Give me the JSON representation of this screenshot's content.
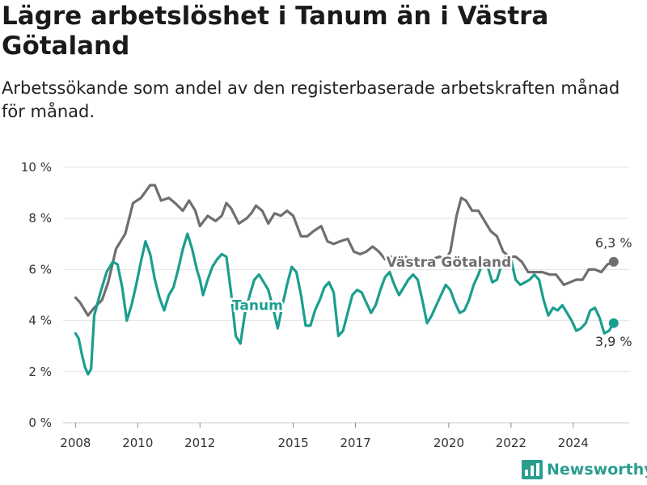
{
  "header": {
    "title": "Lägre arbetslöshet i Tanum än i Västra Götaland",
    "subtitle": "Arbetssökande som andel av den registerbaserade arbetskraften månad för månad."
  },
  "logo": {
    "text": "Newsworthy",
    "icon": "bar-chart-logo-icon",
    "color": "#2a9d8f"
  },
  "chart_data": {
    "type": "line",
    "ylim": [
      0,
      10
    ],
    "xlim": [
      2007.6,
      2025.8
    ],
    "y_ticks": [
      0,
      2,
      4,
      6,
      8,
      10
    ],
    "y_tick_labels": [
      "0 %",
      "2 %",
      "4 %",
      "6 %",
      "8 %",
      "10 %"
    ],
    "x_ticks": [
      2008,
      2010,
      2012,
      2015,
      2017,
      2020,
      2022,
      2024
    ],
    "x_tick_labels": [
      "2008",
      "2010",
      "2012",
      "2015",
      "2017",
      "2020",
      "2022",
      "2024"
    ],
    "grid": "horizontal",
    "legend": "none",
    "series": [
      {
        "name": "Västra Götaland",
        "color": "#6e6e73",
        "end_label": "6,3 %",
        "points": [
          [
            2008.0,
            4.9
          ],
          [
            2008.15,
            4.7
          ],
          [
            2008.4,
            4.2
          ],
          [
            2008.6,
            4.5
          ],
          [
            2008.85,
            4.8
          ],
          [
            2009.05,
            5.5
          ],
          [
            2009.3,
            6.8
          ],
          [
            2009.6,
            7.4
          ],
          [
            2009.85,
            8.6
          ],
          [
            2010.1,
            8.8
          ],
          [
            2010.4,
            9.3
          ],
          [
            2010.55,
            9.3
          ],
          [
            2010.75,
            8.7
          ],
          [
            2011.0,
            8.8
          ],
          [
            2011.2,
            8.6
          ],
          [
            2011.45,
            8.3
          ],
          [
            2011.65,
            8.7
          ],
          [
            2011.85,
            8.3
          ],
          [
            2012.0,
            7.7
          ],
          [
            2012.25,
            8.1
          ],
          [
            2012.5,
            7.9
          ],
          [
            2012.7,
            8.1
          ],
          [
            2012.85,
            8.6
          ],
          [
            2013.0,
            8.4
          ],
          [
            2013.25,
            7.8
          ],
          [
            2013.5,
            8.0
          ],
          [
            2013.65,
            8.2
          ],
          [
            2013.8,
            8.5
          ],
          [
            2014.0,
            8.3
          ],
          [
            2014.2,
            7.8
          ],
          [
            2014.4,
            8.2
          ],
          [
            2014.6,
            8.1
          ],
          [
            2014.8,
            8.3
          ],
          [
            2015.0,
            8.1
          ],
          [
            2015.25,
            7.3
          ],
          [
            2015.45,
            7.3
          ],
          [
            2015.65,
            7.5
          ],
          [
            2015.9,
            7.7
          ],
          [
            2016.1,
            7.1
          ],
          [
            2016.3,
            7.0
          ],
          [
            2016.5,
            7.1
          ],
          [
            2016.75,
            7.2
          ],
          [
            2016.95,
            6.7
          ],
          [
            2017.15,
            6.6
          ],
          [
            2017.35,
            6.7
          ],
          [
            2017.55,
            6.9
          ],
          [
            2017.75,
            6.7
          ],
          [
            2017.95,
            6.4
          ],
          [
            2018.15,
            6.5
          ],
          [
            2018.4,
            6.3
          ],
          [
            2018.6,
            6.5
          ],
          [
            2018.8,
            6.3
          ],
          [
            2019.0,
            6.3
          ],
          [
            2019.2,
            6.2
          ],
          [
            2019.45,
            6.4
          ],
          [
            2019.7,
            6.5
          ],
          [
            2019.9,
            6.4
          ],
          [
            2020.05,
            6.7
          ],
          [
            2020.25,
            8.1
          ],
          [
            2020.4,
            8.8
          ],
          [
            2020.55,
            8.7
          ],
          [
            2020.75,
            8.3
          ],
          [
            2020.95,
            8.3
          ],
          [
            2021.15,
            7.9
          ],
          [
            2021.35,
            7.5
          ],
          [
            2021.55,
            7.3
          ],
          [
            2021.75,
            6.7
          ],
          [
            2021.95,
            6.5
          ],
          [
            2022.15,
            6.5
          ],
          [
            2022.35,
            6.3
          ],
          [
            2022.55,
            5.9
          ],
          [
            2022.8,
            5.9
          ],
          [
            2023.0,
            5.9
          ],
          [
            2023.25,
            5.8
          ],
          [
            2023.45,
            5.8
          ],
          [
            2023.7,
            5.4
          ],
          [
            2023.9,
            5.5
          ],
          [
            2024.1,
            5.6
          ],
          [
            2024.3,
            5.6
          ],
          [
            2024.5,
            6.0
          ],
          [
            2024.7,
            6.0
          ],
          [
            2024.9,
            5.9
          ],
          [
            2025.1,
            6.2
          ],
          [
            2025.3,
            6.3
          ]
        ]
      },
      {
        "name": "Tanum",
        "color": "#1a9e8f",
        "end_label": "3,9 %",
        "points": [
          [
            2008.0,
            3.5
          ],
          [
            2008.1,
            3.3
          ],
          [
            2008.2,
            2.7
          ],
          [
            2008.3,
            2.2
          ],
          [
            2008.4,
            1.9
          ],
          [
            2008.5,
            2.1
          ],
          [
            2008.6,
            4.2
          ],
          [
            2008.8,
            5.1
          ],
          [
            2009.0,
            5.9
          ],
          [
            2009.2,
            6.3
          ],
          [
            2009.35,
            6.2
          ],
          [
            2009.5,
            5.3
          ],
          [
            2009.65,
            4.0
          ],
          [
            2009.8,
            4.6
          ],
          [
            2009.95,
            5.4
          ],
          [
            2010.1,
            6.3
          ],
          [
            2010.25,
            7.1
          ],
          [
            2010.4,
            6.6
          ],
          [
            2010.55,
            5.6
          ],
          [
            2010.7,
            4.9
          ],
          [
            2010.85,
            4.4
          ],
          [
            2011.0,
            5.0
          ],
          [
            2011.15,
            5.3
          ],
          [
            2011.3,
            6.0
          ],
          [
            2011.45,
            6.8
          ],
          [
            2011.6,
            7.4
          ],
          [
            2011.75,
            6.8
          ],
          [
            2011.9,
            6.0
          ],
          [
            2012.0,
            5.6
          ],
          [
            2012.1,
            5.0
          ],
          [
            2012.25,
            5.6
          ],
          [
            2012.4,
            6.1
          ],
          [
            2012.55,
            6.4
          ],
          [
            2012.7,
            6.6
          ],
          [
            2012.85,
            6.5
          ],
          [
            2013.0,
            5.1
          ],
          [
            2013.15,
            3.4
          ],
          [
            2013.3,
            3.1
          ],
          [
            2013.45,
            4.3
          ],
          [
            2013.6,
            5.0
          ],
          [
            2013.75,
            5.6
          ],
          [
            2013.9,
            5.8
          ],
          [
            2014.05,
            5.5
          ],
          [
            2014.2,
            5.2
          ],
          [
            2014.35,
            4.5
          ],
          [
            2014.5,
            3.7
          ],
          [
            2014.65,
            4.6
          ],
          [
            2014.8,
            5.4
          ],
          [
            2014.95,
            6.1
          ],
          [
            2015.1,
            5.9
          ],
          [
            2015.25,
            5.0
          ],
          [
            2015.4,
            3.8
          ],
          [
            2015.55,
            3.8
          ],
          [
            2015.7,
            4.4
          ],
          [
            2015.85,
            4.8
          ],
          [
            2016.0,
            5.3
          ],
          [
            2016.15,
            5.5
          ],
          [
            2016.3,
            5.1
          ],
          [
            2016.45,
            3.4
          ],
          [
            2016.6,
            3.6
          ],
          [
            2016.75,
            4.3
          ],
          [
            2016.9,
            5.0
          ],
          [
            2017.05,
            5.2
          ],
          [
            2017.2,
            5.1
          ],
          [
            2017.35,
            4.7
          ],
          [
            2017.5,
            4.3
          ],
          [
            2017.65,
            4.6
          ],
          [
            2017.8,
            5.2
          ],
          [
            2017.95,
            5.7
          ],
          [
            2018.1,
            5.9
          ],
          [
            2018.25,
            5.4
          ],
          [
            2018.4,
            5.0
          ],
          [
            2018.55,
            5.3
          ],
          [
            2018.7,
            5.6
          ],
          [
            2018.85,
            5.8
          ],
          [
            2019.0,
            5.6
          ],
          [
            2019.15,
            4.8
          ],
          [
            2019.3,
            3.9
          ],
          [
            2019.45,
            4.2
          ],
          [
            2019.6,
            4.6
          ],
          [
            2019.75,
            5.0
          ],
          [
            2019.9,
            5.4
          ],
          [
            2020.05,
            5.2
          ],
          [
            2020.2,
            4.7
          ],
          [
            2020.35,
            4.3
          ],
          [
            2020.5,
            4.4
          ],
          [
            2020.65,
            4.8
          ],
          [
            2020.8,
            5.4
          ],
          [
            2020.95,
            5.8
          ],
          [
            2021.1,
            6.3
          ],
          [
            2021.25,
            6.1
          ],
          [
            2021.4,
            5.5
          ],
          [
            2021.55,
            5.6
          ],
          [
            2021.7,
            6.2
          ],
          [
            2021.85,
            6.5
          ],
          [
            2022.0,
            6.4
          ],
          [
            2022.15,
            5.6
          ],
          [
            2022.3,
            5.4
          ],
          [
            2022.45,
            5.5
          ],
          [
            2022.6,
            5.6
          ],
          [
            2022.75,
            5.8
          ],
          [
            2022.9,
            5.6
          ],
          [
            2023.05,
            4.8
          ],
          [
            2023.2,
            4.2
          ],
          [
            2023.35,
            4.5
          ],
          [
            2023.5,
            4.4
          ],
          [
            2023.65,
            4.6
          ],
          [
            2023.8,
            4.3
          ],
          [
            2023.95,
            4.0
          ],
          [
            2024.1,
            3.6
          ],
          [
            2024.25,
            3.7
          ],
          [
            2024.4,
            3.9
          ],
          [
            2024.55,
            4.4
          ],
          [
            2024.7,
            4.5
          ],
          [
            2024.85,
            4.1
          ],
          [
            2025.0,
            3.5
          ],
          [
            2025.15,
            3.6
          ],
          [
            2025.3,
            3.9
          ]
        ]
      }
    ],
    "annotations": [
      {
        "text": "Västra Götaland",
        "series": 0,
        "x": 2020.0,
        "y": 6.3
      },
      {
        "text": "Tanum",
        "series": 1,
        "x": 2013.85,
        "y": 4.6
      }
    ]
  }
}
